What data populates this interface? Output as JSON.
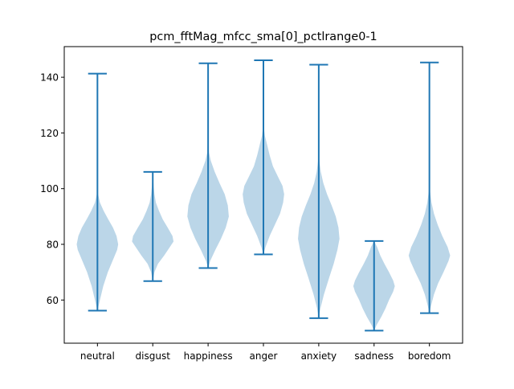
{
  "chart_data": {
    "type": "violin",
    "title": "pcm_fftMag_mfcc_sma[0]_pctlrange0-1",
    "xlabel": "",
    "ylabel": "",
    "categories": [
      "neutral",
      "disgust",
      "happiness",
      "anger",
      "anxiety",
      "sadness",
      "boredom"
    ],
    "ylim": [
      44.5,
      151
    ],
    "yticks": [
      60,
      80,
      100,
      120,
      140
    ],
    "grid": false,
    "colors": {
      "body": "#1f77b4",
      "line": "#1f77b4"
    },
    "violins": [
      {
        "category": "neutral",
        "min": 56.2,
        "max": 141.3,
        "density": [
          [
            56.2,
            0
          ],
          [
            60,
            0.12
          ],
          [
            65,
            0.28
          ],
          [
            70,
            0.5
          ],
          [
            75,
            0.78
          ],
          [
            78,
            0.95
          ],
          [
            80,
            1.0
          ],
          [
            83,
            0.92
          ],
          [
            86,
            0.75
          ],
          [
            89,
            0.52
          ],
          [
            92,
            0.3
          ],
          [
            95,
            0.12
          ],
          [
            98,
            0.03
          ],
          [
            100,
            0.01
          ],
          [
            104,
            0
          ]
        ]
      },
      {
        "category": "disgust",
        "min": 66.8,
        "max": 106.0,
        "density": [
          [
            66.8,
            0
          ],
          [
            70,
            0.08
          ],
          [
            73,
            0.25
          ],
          [
            76,
            0.55
          ],
          [
            79,
            0.82
          ],
          [
            81,
            1.0
          ],
          [
            83,
            0.95
          ],
          [
            86,
            0.72
          ],
          [
            89,
            0.48
          ],
          [
            92,
            0.3
          ],
          [
            95,
            0.15
          ],
          [
            98,
            0.08
          ],
          [
            101,
            0.04
          ],
          [
            106,
            0
          ]
        ]
      },
      {
        "category": "happiness",
        "min": 71.5,
        "max": 145.0,
        "density": [
          [
            71.5,
            0
          ],
          [
            74,
            0.1
          ],
          [
            78,
            0.35
          ],
          [
            82,
            0.62
          ],
          [
            86,
            0.85
          ],
          [
            90,
            1.0
          ],
          [
            94,
            0.95
          ],
          [
            98,
            0.8
          ],
          [
            102,
            0.55
          ],
          [
            106,
            0.32
          ],
          [
            110,
            0.13
          ],
          [
            113,
            0.04
          ],
          [
            118,
            0.01
          ],
          [
            121,
            0
          ]
        ]
      },
      {
        "category": "anger",
        "min": 76.4,
        "max": 146.1,
        "density": [
          [
            76.4,
            0
          ],
          [
            79,
            0.1
          ],
          [
            83,
            0.3
          ],
          [
            87,
            0.55
          ],
          [
            91,
            0.8
          ],
          [
            95,
            0.95
          ],
          [
            98,
            1.0
          ],
          [
            101,
            0.92
          ],
          [
            104,
            0.72
          ],
          [
            108,
            0.46
          ],
          [
            112,
            0.3
          ],
          [
            116,
            0.17
          ],
          [
            119,
            0.07
          ],
          [
            122,
            0.02
          ],
          [
            126,
            0
          ]
        ]
      },
      {
        "category": "anxiety",
        "min": 53.5,
        "max": 144.5,
        "density": [
          [
            53.5,
            0
          ],
          [
            57,
            0.08
          ],
          [
            62,
            0.25
          ],
          [
            68,
            0.5
          ],
          [
            73,
            0.72
          ],
          [
            78,
            0.9
          ],
          [
            82,
            1.0
          ],
          [
            86,
            0.95
          ],
          [
            90,
            0.82
          ],
          [
            94,
            0.62
          ],
          [
            98,
            0.4
          ],
          [
            102,
            0.22
          ],
          [
            106,
            0.1
          ],
          [
            110,
            0.03
          ],
          [
            114,
            0.01
          ],
          [
            118,
            0
          ]
        ]
      },
      {
        "category": "sadness",
        "min": 49.0,
        "max": 81.2,
        "density": [
          [
            49.0,
            0
          ],
          [
            51,
            0.12
          ],
          [
            54,
            0.35
          ],
          [
            57,
            0.55
          ],
          [
            60,
            0.72
          ],
          [
            63,
            0.92
          ],
          [
            65,
            1.0
          ],
          [
            67,
            0.92
          ],
          [
            70,
            0.72
          ],
          [
            73,
            0.5
          ],
          [
            76,
            0.3
          ],
          [
            79,
            0.15
          ],
          [
            81.2,
            0
          ]
        ]
      },
      {
        "category": "boredom",
        "min": 55.3,
        "max": 145.3,
        "density": [
          [
            55.3,
            0
          ],
          [
            58,
            0.08
          ],
          [
            62,
            0.22
          ],
          [
            66,
            0.42
          ],
          [
            70,
            0.68
          ],
          [
            74,
            0.92
          ],
          [
            76,
            1.0
          ],
          [
            79,
            0.88
          ],
          [
            83,
            0.62
          ],
          [
            87,
            0.4
          ],
          [
            91,
            0.22
          ],
          [
            95,
            0.1
          ],
          [
            99,
            0.03
          ],
          [
            103,
            0
          ]
        ]
      }
    ]
  }
}
